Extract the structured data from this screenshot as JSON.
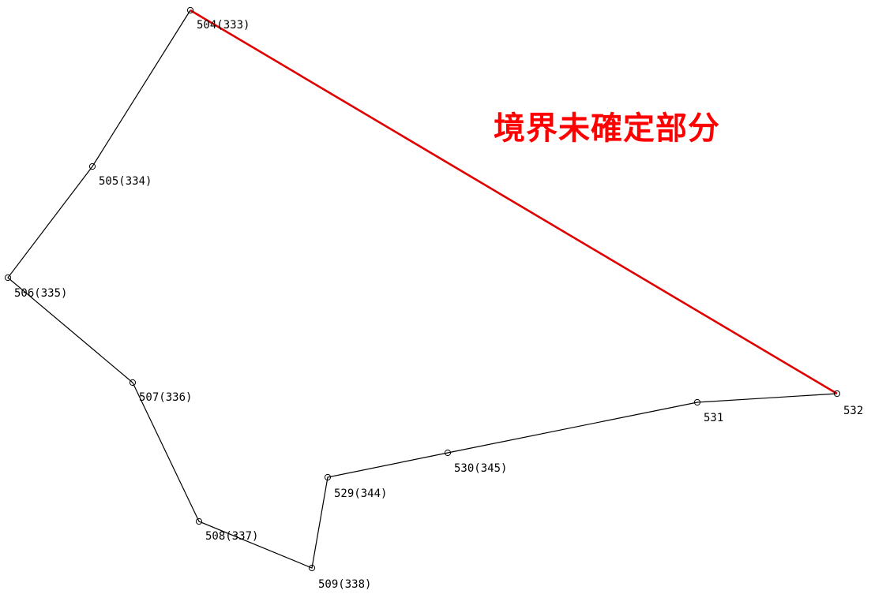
{
  "diagram": {
    "annotation": "境界未確定部分",
    "colors": {
      "boundary_line": "#000000",
      "undetermined_segment": "#e00000",
      "annotation_text": "#ff0000"
    },
    "points": [
      {
        "id": "p504",
        "label": "504(333)"
      },
      {
        "id": "p505",
        "label": "505(334)"
      },
      {
        "id": "p506",
        "label": "506(335)"
      },
      {
        "id": "p507",
        "label": "507(336)"
      },
      {
        "id": "p508",
        "label": "508(337)"
      },
      {
        "id": "p509",
        "label": "509(338)"
      },
      {
        "id": "p529",
        "label": "529(344)"
      },
      {
        "id": "p530",
        "label": "530(345)"
      },
      {
        "id": "p531",
        "label": "531"
      },
      {
        "id": "p532",
        "label": "532"
      }
    ],
    "boundary_path": [
      "p504",
      "p505",
      "p506",
      "p507",
      "p508",
      "p509",
      "p529",
      "p530",
      "p531",
      "p532"
    ],
    "undetermined_segment": [
      "p532",
      "p504"
    ]
  }
}
